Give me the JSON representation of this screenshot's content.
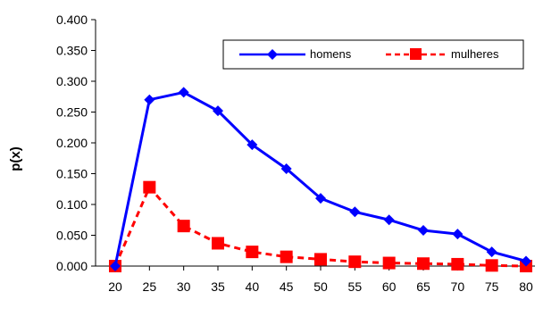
{
  "chart_data": {
    "type": "line",
    "title": "",
    "xlabel": "",
    "ylabel": "p(x)",
    "x": [
      20,
      25,
      30,
      35,
      40,
      45,
      50,
      55,
      60,
      65,
      70,
      75,
      80
    ],
    "x_tick_labels": [
      "20",
      "25",
      "30",
      "35",
      "40",
      "45",
      "50",
      "55",
      "60",
      "65",
      "70",
      "75",
      "80"
    ],
    "y_tick_labels": [
      "0.000",
      "0.050",
      "0.100",
      "0.150",
      "0.200",
      "0.250",
      "0.300",
      "0.350",
      "0.400"
    ],
    "ylim": [
      0,
      0.4
    ],
    "grid": false,
    "legend_position": "top-right",
    "series": [
      {
        "name": "homens",
        "color": "#0000ff",
        "marker": "diamond",
        "line_style": "solid",
        "values": [
          0.0,
          0.27,
          0.282,
          0.252,
          0.197,
          0.158,
          0.11,
          0.088,
          0.075,
          0.058,
          0.052,
          0.023,
          0.008
        ]
      },
      {
        "name": "mulheres",
        "color": "#ff0000",
        "marker": "square",
        "line_style": "dashed",
        "values": [
          0.0,
          0.128,
          0.065,
          0.037,
          0.023,
          0.015,
          0.011,
          0.007,
          0.005,
          0.004,
          0.003,
          0.001,
          0.0
        ]
      }
    ]
  }
}
